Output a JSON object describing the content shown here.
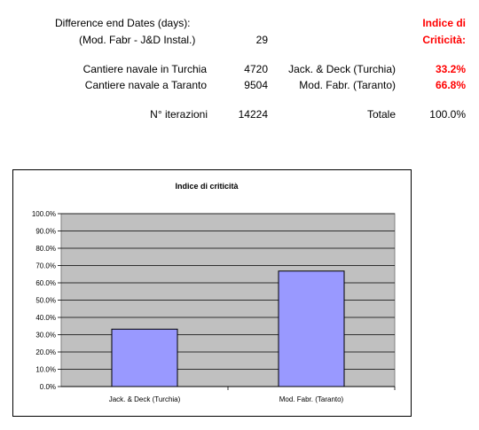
{
  "summary": {
    "diff_label_1": "Difference  end Dates (days):",
    "diff_label_2": "(Mod. Fabr - J&D Instal.)",
    "diff_value": "29",
    "index_header_1": "Indice di",
    "index_header_2": "Criticità:",
    "rows": [
      {
        "label": "Cantiere navale  in Turchia",
        "value": "4720",
        "name": "Jack. & Deck (Turchia)",
        "pct": "33.2%"
      },
      {
        "label": "Cantiere navale  a Taranto",
        "value": "9504",
        "name": "Mod. Fabr. (Taranto)",
        "pct": "66.8%"
      }
    ],
    "iter_label": "N° iterazioni",
    "iter_value": "14224",
    "total_label": "Totale",
    "total_pct": "100.0%"
  },
  "colors": {
    "red": "#ff0000",
    "bar_fill": "#9999ff",
    "plot_bg": "#c0c0c0"
  },
  "chart_data": {
    "type": "bar",
    "title": "Indice di criticità",
    "categories": [
      "Jack. & Deck (Turchia)",
      "Mod. Fabr. (Taranto)"
    ],
    "values": [
      33.2,
      66.8
    ],
    "ylim": [
      0,
      100
    ],
    "yticks": [
      "0.0%",
      "10.0%",
      "20.0%",
      "30.0%",
      "40.0%",
      "50.0%",
      "60.0%",
      "70.0%",
      "80.0%",
      "90.0%",
      "100.0%"
    ],
    "xlabel": "",
    "ylabel": "",
    "grid": true,
    "legend": false
  }
}
